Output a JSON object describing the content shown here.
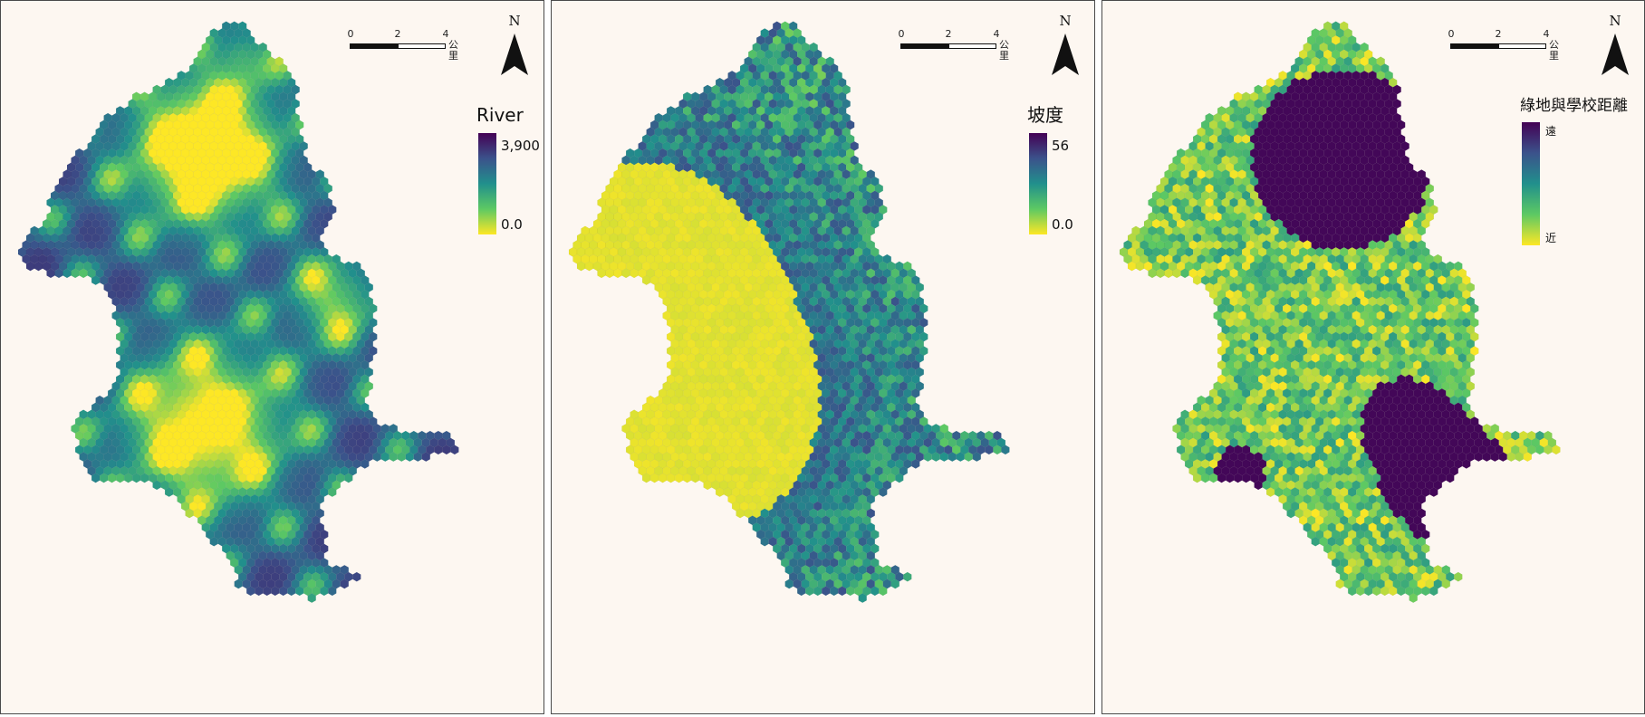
{
  "colors": {
    "background": "#fdf7f1",
    "border": "#4a4a4a",
    "ramp": [
      "#440154",
      "#3b528b",
      "#21908c",
      "#5dc963",
      "#fde725"
    ]
  },
  "scalebar": {
    "ticks": [
      "0",
      "2",
      "4"
    ],
    "unit": "公里"
  },
  "north_arrow": {
    "label": "N"
  },
  "panels": [
    {
      "legend_title": "River",
      "legend_max": "3,900",
      "legend_min": "0.0",
      "pattern": "river-distance",
      "color_ramp": "viridis (dark = far, yellow = near)"
    },
    {
      "legend_title": "坡度",
      "legend_max": "56",
      "legend_min": "0.0",
      "pattern": "slope",
      "color_ramp": "viridis (dark = steep, yellow = flat)"
    },
    {
      "legend_title": "綠地與學校距離",
      "legend_max": "遠",
      "legend_min": "近",
      "pattern": "greenspace-school-distance",
      "color_ramp": "viridis (dark = far, yellow = near)"
    }
  ]
}
